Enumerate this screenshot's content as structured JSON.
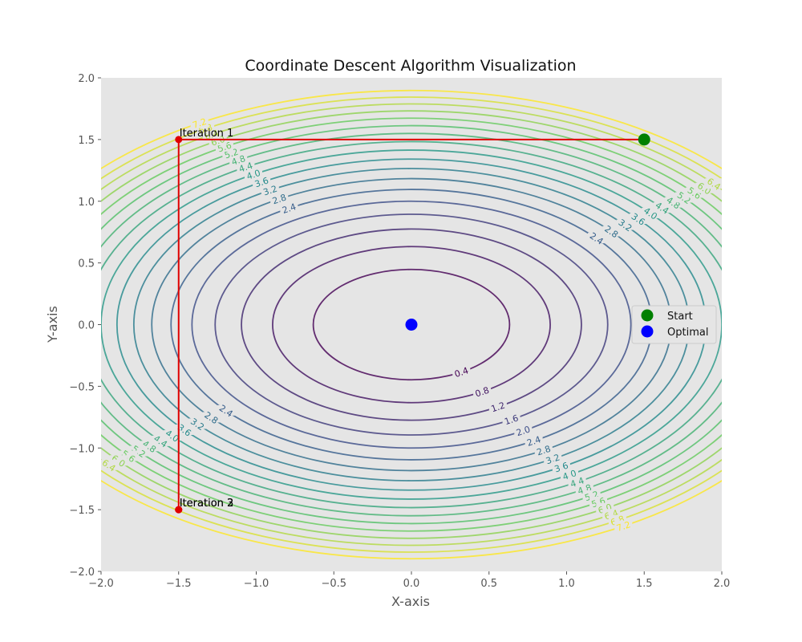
{
  "chart_data": {
    "type": "contour",
    "title": "Coordinate Descent Algorithm Visualization",
    "xlabel": "X-axis",
    "ylabel": "Y-axis",
    "xlim": [
      -2.0,
      2.0
    ],
    "ylim": [
      -2.0,
      2.0
    ],
    "x_ticks": [
      "−2.0",
      "−1.5",
      "−1.0",
      "−0.5",
      "0.0",
      "0.5",
      "1.0",
      "1.5",
      "2.0"
    ],
    "y_ticks": [
      "−2.0",
      "−1.5",
      "−1.0",
      "−0.5",
      "0.0",
      "0.5",
      "1.0",
      "1.5",
      "2.0"
    ],
    "function": "f(x, y) = x^2 + 2*y^2",
    "contour_levels": [
      0.4,
      0.8,
      1.2,
      1.6,
      2.0,
      2.4,
      2.8,
      3.2,
      3.6,
      4.0,
      4.4,
      4.8,
      5.2,
      5.6,
      6.0,
      6.4,
      6.8,
      7.2
    ],
    "contour_level_labels": [
      "0.4",
      "0.8",
      "1.2",
      "1.6",
      "2.0",
      "2.4",
      "2.8",
      "3.2",
      "3.6",
      "4.0",
      "4.4",
      "4.8",
      "5.2",
      "5.6",
      "6.0",
      "6.4",
      "6.8",
      "7.2"
    ],
    "path": {
      "color": "#e00000",
      "points": [
        [
          1.5,
          1.5
        ],
        [
          -1.5,
          1.5
        ],
        [
          -1.5,
          -1.5
        ],
        [
          -1.5,
          -1.5
        ],
        [
          -1.5,
          -1.5
        ]
      ]
    },
    "iteration_labels": [
      {
        "text": "Iteration 1",
        "x": -1.5,
        "y": 1.5
      },
      {
        "text": "Iteration 2",
        "x": -1.5,
        "y": -1.5
      },
      {
        "text": "Iteration 3",
        "x": -1.5,
        "y": -1.5
      }
    ],
    "markers": [
      {
        "name": "Start",
        "x": 1.5,
        "y": 1.5,
        "color": "#008000"
      },
      {
        "name": "Optimal",
        "x": 0.0,
        "y": 0.0,
        "color": "#0000ff"
      }
    ],
    "legend": {
      "position": "center-right",
      "entries": [
        {
          "label": "Start",
          "color": "#008000"
        },
        {
          "label": "Optimal",
          "color": "#0000ff"
        }
      ]
    },
    "plot_background": "#e5e5e5",
    "grid": false
  }
}
